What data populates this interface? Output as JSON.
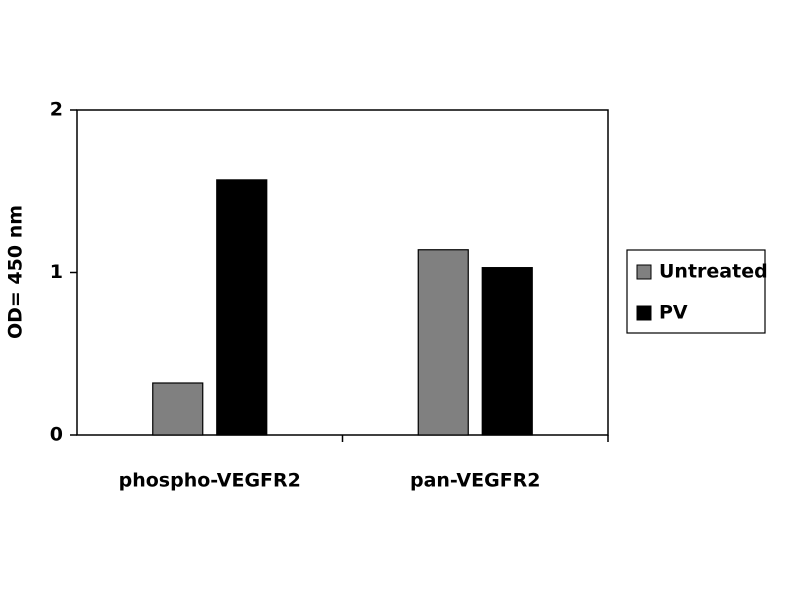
{
  "chart_data": {
    "type": "bar",
    "y_label": "OD= 450 nm",
    "categories": [
      "phospho-VEGFR2",
      "pan-VEGFR2"
    ],
    "series": [
      {
        "name": "Untreated",
        "color": "#808080",
        "values": [
          0.32,
          1.14
        ]
      },
      {
        "name": "PV",
        "color": "#000000",
        "values": [
          1.57,
          1.03
        ]
      }
    ],
    "ylim": [
      0,
      2
    ],
    "yticks": [
      0,
      1,
      2
    ],
    "legend": "right",
    "grid": false
  }
}
